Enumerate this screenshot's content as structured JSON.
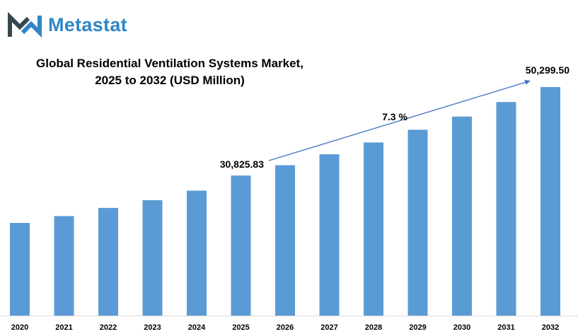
{
  "brand": {
    "name": "Metastat"
  },
  "colors": {
    "bar": "#5b9bd5",
    "arrow": "#4472c4",
    "brand": "#2f86c8",
    "logo_dark": "#37474f"
  },
  "chart_data": {
    "type": "bar",
    "title_line1": "Global Residential Ventilation Systems Market,",
    "title_line2": "2025 to 2032 (USD Million)",
    "categories": [
      "2020",
      "2021",
      "2022",
      "2023",
      "2024",
      "2025",
      "2026",
      "2027",
      "2028",
      "2029",
      "2030",
      "2031",
      "2032"
    ],
    "values": [
      20400,
      21900,
      23700,
      25400,
      27500,
      30825.83,
      33100,
      35500,
      38100,
      40900,
      43800,
      47000,
      50299.5
    ],
    "ylim": [
      0,
      52000
    ],
    "grid": false,
    "annotations": {
      "start_label": "30,825.83",
      "end_label": "50,299.50",
      "cagr_label": "7.3 %"
    }
  }
}
